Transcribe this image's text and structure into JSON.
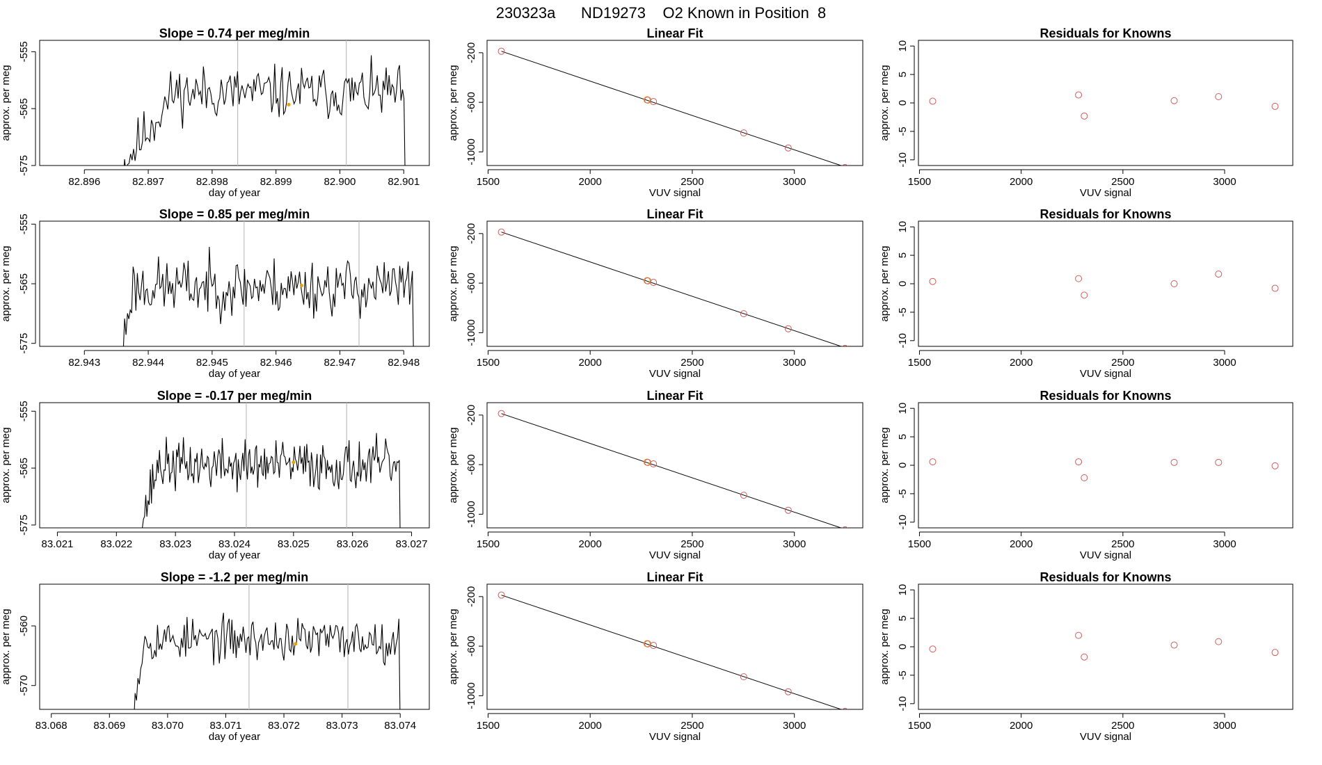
{
  "figure_title": "230323a      ND19273    O2 Known in Position  8",
  "colors": {
    "line": "#000000",
    "vline": "#bebebe",
    "known_point": "#cd5c5c",
    "highlight_point": "#e8a000"
  },
  "chart_data": [
    {
      "type": "line",
      "title": "Slope =  0.74  per meg/min",
      "xlabel": "day of year",
      "ylabel": "approx. per meg",
      "xlim": [
        82.8953,
        82.9014
      ],
      "ylim": [
        -575,
        -553
      ],
      "xticks": [
        82.896,
        82.897,
        82.898,
        82.899,
        82.9,
        82.901
      ],
      "xtick_labels": [
        "82.896",
        "82.897",
        "82.898",
        "82.899",
        "82.900",
        "82.901"
      ],
      "yticks": [
        -575,
        -565,
        -555
      ],
      "ytick_labels": [
        "-575",
        "-565",
        "-555"
      ],
      "series_x_range": [
        82.8957,
        82.90105
      ],
      "active_start": 82.8966,
      "active_end": 82.90102,
      "ramp_end": 82.8974,
      "plateau": -562.2,
      "noise": 2.3,
      "seed": 11,
      "vlines": [
        82.8984,
        82.9001
      ],
      "highlight": {
        "x": 82.8992,
        "y": -564.3
      }
    },
    {
      "type": "scatter",
      "title": "Linear Fit",
      "xlabel": "VUV signal",
      "ylabel": "approx. per meg",
      "xlim": [
        1495,
        3335
      ],
      "ylim": [
        -1110,
        -100
      ],
      "xticks": [
        1500,
        2000,
        2500,
        3000
      ],
      "xtick_labels": [
        "1500",
        "2000",
        "2500",
        "3000"
      ],
      "yticks": [
        -1000,
        -600,
        -200
      ],
      "ytick_labels": [
        "-1000",
        "-600",
        "-200"
      ],
      "points": [
        [
          1565,
          -188
        ],
        [
          2282,
          -582
        ],
        [
          2310,
          -594
        ],
        [
          2752,
          -847
        ],
        [
          2970,
          -968
        ],
        [
          3248,
          -1126
        ]
      ],
      "highlight_points": [
        [
          2278,
          -580
        ]
      ],
      "fit_line": [
        [
          1565,
          -188
        ],
        [
          3295,
          -1147
        ]
      ]
    },
    {
      "type": "scatter",
      "title": "Residuals for Knowns",
      "xlabel": "VUV signal",
      "ylabel": "approx. per meg",
      "xlim": [
        1495,
        3335
      ],
      "ylim": [
        -11,
        11
      ],
      "xticks": [
        1500,
        2000,
        2500,
        3000
      ],
      "xtick_labels": [
        "1500",
        "2000",
        "2500",
        "3000"
      ],
      "yticks": [
        -10,
        -5,
        0,
        5,
        10
      ],
      "ytick_labels": [
        "-10",
        "-5",
        "0",
        "5",
        "10"
      ],
      "points": [
        [
          1565,
          0.3
        ],
        [
          2282,
          1.4
        ],
        [
          2310,
          -2.3
        ],
        [
          2752,
          0.4
        ],
        [
          2970,
          1.1
        ],
        [
          3248,
          -0.6
        ]
      ]
    },
    {
      "type": "line",
      "title": "Slope =  0.85  per meg/min",
      "xlabel": "day of year",
      "ylabel": "approx. per meg",
      "xlim": [
        82.9423,
        82.9484
      ],
      "ylim": [
        -575.5,
        -554.5
      ],
      "xticks": [
        82.943,
        82.944,
        82.945,
        82.946,
        82.947,
        82.948
      ],
      "xtick_labels": [
        "82.943",
        "82.944",
        "82.945",
        "82.946",
        "82.947",
        "82.948"
      ],
      "yticks": [
        -575,
        -565,
        -555
      ],
      "ytick_labels": [
        "-575",
        "-565",
        "-555"
      ],
      "series_x_range": [
        82.9431,
        82.94818
      ],
      "active_start": 82.9436,
      "active_end": 82.94815,
      "ramp_end": 82.94375,
      "plateau": -565.5,
      "noise": 2.4,
      "seed": 23,
      "vlines": [
        82.9455,
        82.9473
      ],
      "highlight": {
        "x": 82.9464,
        "y": -565.3
      }
    },
    {
      "type": "scatter",
      "title": "Linear Fit",
      "xlabel": "VUV signal",
      "ylabel": "approx. per meg",
      "xlim": [
        1495,
        3335
      ],
      "ylim": [
        -1110,
        -100
      ],
      "xticks": [
        1500,
        2000,
        2500,
        3000
      ],
      "xtick_labels": [
        "1500",
        "2000",
        "2500",
        "3000"
      ],
      "yticks": [
        -1000,
        -600,
        -200
      ],
      "ytick_labels": [
        "-1000",
        "-600",
        "-200"
      ],
      "points": [
        [
          1565,
          -188
        ],
        [
          2282,
          -582
        ],
        [
          2310,
          -594
        ],
        [
          2752,
          -847
        ],
        [
          2970,
          -968
        ],
        [
          3248,
          -1126
        ]
      ],
      "highlight_points": [
        [
          2278,
          -580
        ]
      ],
      "fit_line": [
        [
          1565,
          -188
        ],
        [
          3295,
          -1147
        ]
      ]
    },
    {
      "type": "scatter",
      "title": "Residuals for Knowns",
      "xlabel": "VUV signal",
      "ylabel": "approx. per meg",
      "xlim": [
        1495,
        3335
      ],
      "ylim": [
        -11,
        11
      ],
      "xticks": [
        1500,
        2000,
        2500,
        3000
      ],
      "xtick_labels": [
        "1500",
        "2000",
        "2500",
        "3000"
      ],
      "yticks": [
        -10,
        -5,
        0,
        5,
        10
      ],
      "ytick_labels": [
        "-10",
        "-5",
        "0",
        "5",
        "10"
      ],
      "points": [
        [
          1565,
          0.4
        ],
        [
          2282,
          0.9
        ],
        [
          2310,
          -2.0
        ],
        [
          2752,
          0.0
        ],
        [
          2970,
          1.7
        ],
        [
          3248,
          -0.8
        ]
      ]
    },
    {
      "type": "line",
      "title": "Slope =  -0.17  per meg/min",
      "xlabel": "day of year",
      "ylabel": "approx. per meg",
      "xlim": [
        83.0207,
        83.0273
      ],
      "ylim": [
        -575.5,
        -553.5
      ],
      "xticks": [
        83.021,
        83.022,
        83.023,
        83.024,
        83.025,
        83.026,
        83.027
      ],
      "xtick_labels": [
        "83.021",
        "83.022",
        "83.023",
        "83.024",
        "83.025",
        "83.026",
        "83.027"
      ],
      "yticks": [
        -575,
        -565,
        -555
      ],
      "ytick_labels": [
        "-575",
        "-565",
        "-555"
      ],
      "series_x_range": [
        83.0224,
        83.02685
      ],
      "active_start": 83.0224,
      "active_end": 83.0268,
      "ramp_end": 83.0227,
      "plateau": -564.5,
      "noise": 2.2,
      "seed": 37,
      "vlines": [
        83.0242,
        83.0259
      ],
      "highlight": {
        "x": 83.025,
        "y": -564.0
      }
    },
    {
      "type": "scatter",
      "title": "Linear Fit",
      "xlabel": "VUV signal",
      "ylabel": "approx. per meg",
      "xlim": [
        1495,
        3335
      ],
      "ylim": [
        -1110,
        -100
      ],
      "xticks": [
        1500,
        2000,
        2500,
        3000
      ],
      "xtick_labels": [
        "1500",
        "2000",
        "2500",
        "3000"
      ],
      "yticks": [
        -1000,
        -600,
        -200
      ],
      "ytick_labels": [
        "-1000",
        "-600",
        "-200"
      ],
      "points": [
        [
          1565,
          -188
        ],
        [
          2282,
          -582
        ],
        [
          2310,
          -594
        ],
        [
          2752,
          -847
        ],
        [
          2970,
          -968
        ],
        [
          3248,
          -1126
        ]
      ],
      "highlight_points": [
        [
          2278,
          -580
        ]
      ],
      "fit_line": [
        [
          1565,
          -188
        ],
        [
          3295,
          -1147
        ]
      ]
    },
    {
      "type": "scatter",
      "title": "Residuals for Knowns",
      "xlabel": "VUV signal",
      "ylabel": "approx. per meg",
      "xlim": [
        1495,
        3335
      ],
      "ylim": [
        -11,
        11
      ],
      "xticks": [
        1500,
        2000,
        2500,
        3000
      ],
      "xtick_labels": [
        "1500",
        "2000",
        "2500",
        "3000"
      ],
      "yticks": [
        -10,
        -5,
        0,
        5,
        10
      ],
      "ytick_labels": [
        "-10",
        "-5",
        "0",
        "5",
        "10"
      ],
      "points": [
        [
          1565,
          0.6
        ],
        [
          2282,
          0.6
        ],
        [
          2310,
          -2.2
        ],
        [
          2752,
          0.5
        ],
        [
          2970,
          0.5
        ],
        [
          3248,
          -0.1
        ]
      ]
    },
    {
      "type": "line",
      "title": "Slope =  -1.2  per meg/min",
      "xlabel": "day of year",
      "ylabel": "approx. per meg",
      "xlim": [
        83.0678,
        83.0745
      ],
      "ylim": [
        -574,
        -553
      ],
      "xticks": [
        83.068,
        83.069,
        83.07,
        83.071,
        83.072,
        83.073,
        83.074
      ],
      "xtick_labels": [
        "83.068",
        "83.069",
        "83.070",
        "83.071",
        "83.072",
        "83.073",
        "83.074"
      ],
      "yticks": [
        -570,
        -560
      ],
      "ytick_labels": [
        "-570",
        "-560"
      ],
      "series_x_range": [
        83.0685,
        83.07405
      ],
      "active_start": 83.0694,
      "active_end": 83.074,
      "ramp_end": 83.0696,
      "plateau": -562.3,
      "noise": 1.8,
      "seed": 53,
      "vlines": [
        83.0714,
        83.0731
      ],
      "highlight": {
        "x": 83.0722,
        "y": -563.0
      }
    },
    {
      "type": "scatter",
      "title": "Linear Fit",
      "xlabel": "VUV signal",
      "ylabel": "approx. per meg",
      "xlim": [
        1495,
        3335
      ],
      "ylim": [
        -1110,
        -100
      ],
      "xticks": [
        1500,
        2000,
        2500,
        3000
      ],
      "xtick_labels": [
        "1500",
        "2000",
        "2500",
        "3000"
      ],
      "yticks": [
        -1000,
        -600,
        -200
      ],
      "ytick_labels": [
        "-1000",
        "-600",
        "-200"
      ],
      "points": [
        [
          1565,
          -188
        ],
        [
          2282,
          -582
        ],
        [
          2310,
          -594
        ],
        [
          2752,
          -847
        ],
        [
          2970,
          -968
        ],
        [
          3248,
          -1126
        ]
      ],
      "highlight_points": [
        [
          2278,
          -580
        ]
      ],
      "fit_line": [
        [
          1565,
          -188
        ],
        [
          3295,
          -1147
        ]
      ]
    },
    {
      "type": "scatter",
      "title": "Residuals for Knowns",
      "xlabel": "VUV signal",
      "ylabel": "approx. per meg",
      "xlim": [
        1495,
        3335
      ],
      "ylim": [
        -11,
        11
      ],
      "xticks": [
        1500,
        2000,
        2500,
        3000
      ],
      "xtick_labels": [
        "1500",
        "2000",
        "2500",
        "3000"
      ],
      "yticks": [
        -10,
        -5,
        0,
        5,
        10
      ],
      "ytick_labels": [
        "-10",
        "-5",
        "0",
        "5",
        "10"
      ],
      "points": [
        [
          1565,
          -0.4
        ],
        [
          2282,
          2.0
        ],
        [
          2310,
          -1.8
        ],
        [
          2752,
          0.3
        ],
        [
          2970,
          0.9
        ],
        [
          3248,
          -1.0
        ]
      ]
    }
  ]
}
